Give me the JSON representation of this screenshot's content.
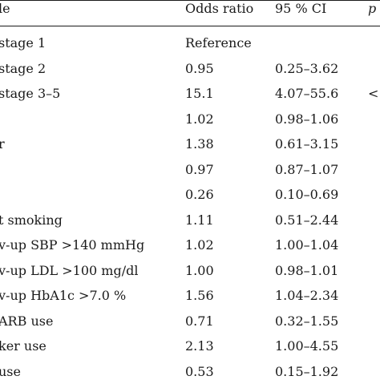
{
  "header": {
    "variable": "le",
    "odds_ratio": "Odds ratio",
    "ci": "95 % CI",
    "p": "p"
  },
  "rows": [
    {
      "variable": "stage 1",
      "odds_ratio": "Reference",
      "ci": "",
      "p": ""
    },
    {
      "variable": "stage 2",
      "odds_ratio": "0.95",
      "ci": "0.25–3.62",
      "p": ""
    },
    {
      "variable": "stage 3–5",
      "odds_ratio": "15.1",
      "ci": "4.07–55.6",
      "p": "<"
    },
    {
      "variable": "",
      "odds_ratio": "1.02",
      "ci": "0.98–1.06",
      "p": ""
    },
    {
      "variable": "r",
      "odds_ratio": "1.38",
      "ci": "0.61–3.15",
      "p": ""
    },
    {
      "variable": "",
      "odds_ratio": "0.97",
      "ci": "0.87–1.07",
      "p": ""
    },
    {
      "variable": "",
      "odds_ratio": "0.26",
      "ci": "0.10–0.69",
      "p": ""
    },
    {
      "variable": "t smoking",
      "odds_ratio": "1.11",
      "ci": "0.51–2.44",
      "p": ""
    },
    {
      "variable": "v-up SBP >140 mmHg",
      "odds_ratio": "1.02",
      "ci": "1.00–1.04",
      "p": ""
    },
    {
      "variable": "v-up LDL >100 mg/dl",
      "odds_ratio": "1.00",
      "ci": "0.98–1.01",
      "p": ""
    },
    {
      "variable": "v-up HbA1c >7.0 %",
      "odds_ratio": "1.56",
      "ci": "1.04–2.34",
      "p": ""
    },
    {
      "variable": "ARB use",
      "odds_ratio": "0.71",
      "ci": "0.32–1.55",
      "p": ""
    },
    {
      "variable": "ker use",
      "odds_ratio": "2.13",
      "ci": "1.00–4.55",
      "p": ""
    },
    {
      "variable": "use",
      "odds_ratio": "0.53",
      "ci": "0.15–1.92",
      "p": ""
    }
  ]
}
